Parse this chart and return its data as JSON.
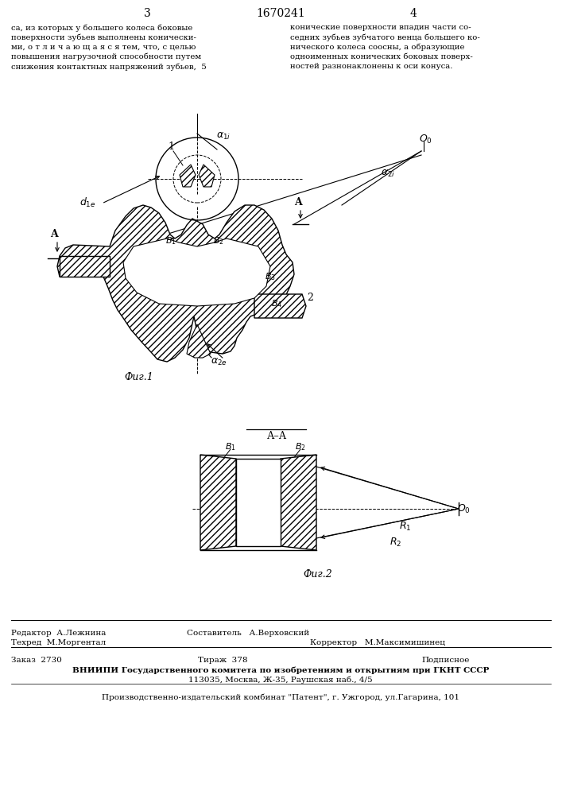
{
  "page_numbers_left": "3",
  "page_numbers_center": "1670241",
  "page_numbers_right": "4",
  "top_text_left": "са, из которых у большего колеса боковые\nповерхности зубьев выполнены конически-\nми, о т л и ч а ю щ а я с я тем, что, с целью\nповышения нагрузочной способности путем\nснижения контактных напряжений зубьев,  5",
  "top_text_right": "конические поверхности впадин части со-\nседних зубьев зубчатого венца большего ко-\nнического колеса соосны, а образующие\nодноименных конических боковых поверх-\nностей разнонаклонены к оси конуса.",
  "fig1_label": "Фиг.1",
  "fig2_label": "Фиг.2",
  "footer_editor": "Редактор  А.Лежнина",
  "footer_composer": "Составитель   А.Верховский",
  "footer_tech": "Техред  М.Моргентал",
  "footer_corrector": "Корректор   М.Максимишинец",
  "footer_order": "Заказ  2730",
  "footer_copies": "Тираж  378",
  "footer_signed": "Подписное",
  "footer_vniip1": "ВНИИПИ Государственного комитета по изобретениям и открытиям при ГКНТ СССР",
  "footer_vniip2": "113035, Москва, Ж-35, Раушская наб., 4/5",
  "footer_patent": "Производственно-издательский комбинат \"Патент\", г. Ужгород, ул.Гагарина, 101",
  "bg_color": "#ffffff"
}
